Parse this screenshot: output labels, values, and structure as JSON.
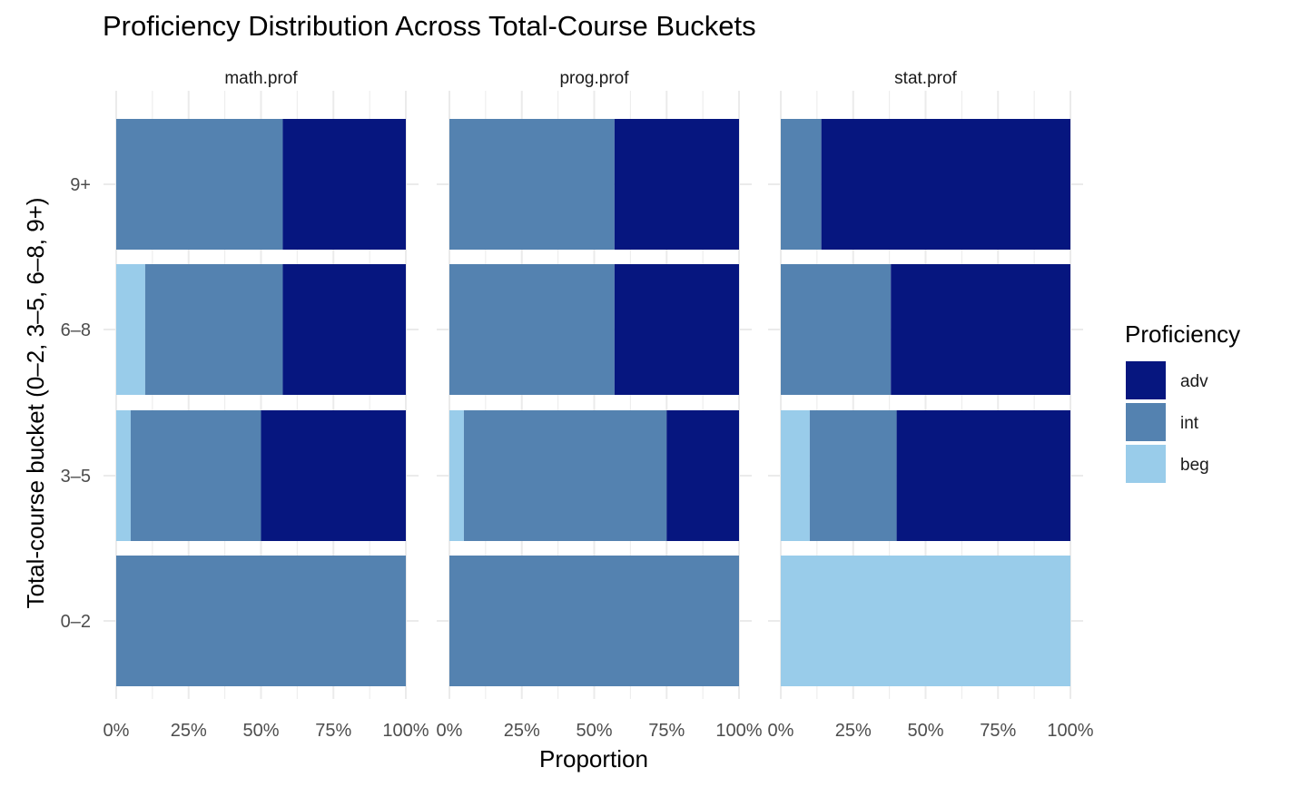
{
  "chart_data": {
    "type": "bar",
    "orientation": "horizontal",
    "stacked": "proportion",
    "title": "Proficiency Distribution Across Total-Course Buckets",
    "xlabel": "Proportion",
    "ylabel": "Total-course bucket (0–2, 3–5, 6–8, 9+)",
    "xlim": [
      0,
      1
    ],
    "x_ticks": [
      "0%",
      "25%",
      "50%",
      "75%",
      "100%"
    ],
    "categories": [
      "0–2",
      "3–5",
      "6–8",
      "9+"
    ],
    "grid": true,
    "legend": {
      "title": "Proficiency",
      "position": "right",
      "entries": [
        {
          "name": "adv",
          "color": "#06167F"
        },
        {
          "name": "int",
          "color": "#5482B0"
        },
        {
          "name": "beg",
          "color": "#99CCEA"
        }
      ]
    },
    "stack_order": [
      "beg",
      "int",
      "adv"
    ],
    "panels": [
      {
        "name": "math.prof",
        "series": [
          {
            "name": "beg",
            "values": [
              0,
              0.05,
              0.1,
              0
            ]
          },
          {
            "name": "int",
            "values": [
              1,
              0.45,
              0.475,
              0.575
            ]
          },
          {
            "name": "adv",
            "values": [
              0,
              0.5,
              0.425,
              0.425
            ]
          }
        ]
      },
      {
        "name": "prog.prof",
        "series": [
          {
            "name": "beg",
            "values": [
              0,
              0.05,
              0,
              0
            ]
          },
          {
            "name": "int",
            "values": [
              1,
              0.7,
              0.57,
              0.57
            ]
          },
          {
            "name": "adv",
            "values": [
              0,
              0.25,
              0.43,
              0.43
            ]
          }
        ]
      },
      {
        "name": "stat.prof",
        "series": [
          {
            "name": "beg",
            "values": [
              1,
              0.1,
              0,
              0
            ]
          },
          {
            "name": "int",
            "values": [
              0,
              0.3,
              0.38,
              0.14
            ]
          },
          {
            "name": "adv",
            "values": [
              0,
              0.6,
              0.62,
              0.86
            ]
          }
        ]
      }
    ]
  }
}
